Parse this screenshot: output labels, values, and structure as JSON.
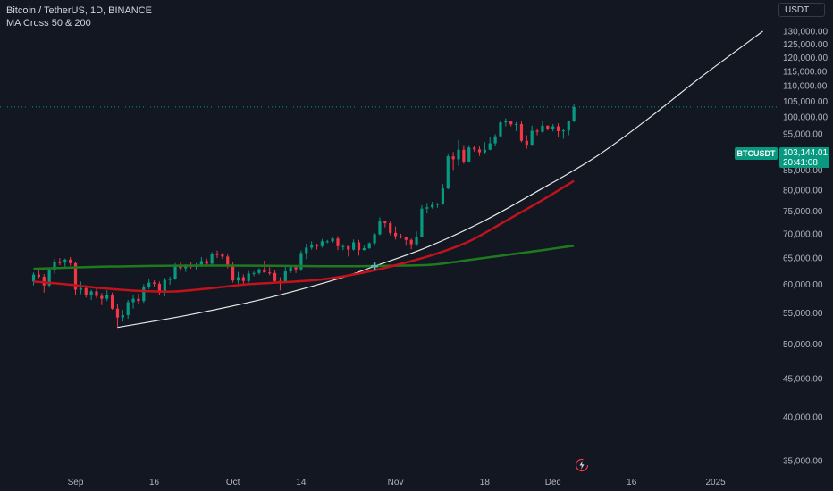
{
  "header": {
    "symbol_line": "Bitcoin / TetherUS, 1D, BINANCE",
    "indicator_line": "MA Cross 50 & 200",
    "currency_button": "USDT"
  },
  "price_tag": {
    "symbol": "BTCUSDT",
    "price": "103,144.01",
    "countdown": "20:41:08"
  },
  "colors": {
    "background": "#131722",
    "up_candle": "#089981",
    "down_candle": "#f23645",
    "ma_fast": "#c2121b",
    "ma_slow": "#1f7a1f",
    "curve": "#e8e8e8",
    "cross_marker": "#5fb8b0"
  },
  "icons": {
    "replay": "lightning-clock-icon"
  },
  "chart_data": {
    "type": "candlestick",
    "y_axis_labels": [
      "130,000.00",
      "125,000.00",
      "120,000.00",
      "115,000.00",
      "110,000.00",
      "105,000.00",
      "100,000.00",
      "95,000.00",
      "90,000.00",
      "85,000.00",
      "80,000.00",
      "75,000.00",
      "70,000.00",
      "65,000.00",
      "60,000.00",
      "55,000.00",
      "50,000.00",
      "45,000.00",
      "40,000.00",
      "35,000.00"
    ],
    "y_axis_values": [
      130000,
      125000,
      120000,
      115000,
      110000,
      105000,
      100000,
      95000,
      90000,
      85000,
      80000,
      75000,
      70000,
      65000,
      60000,
      55000,
      50000,
      45000,
      40000,
      35000
    ],
    "y_scale": "log",
    "x_axis_labels": [
      "Sep",
      "16",
      "Oct",
      "14",
      "Nov",
      "18",
      "Dec",
      "16",
      "2025"
    ],
    "x_axis_dates": [
      "2024-09-01",
      "2024-09-16",
      "2024-10-01",
      "2024-10-14",
      "2024-11-01",
      "2024-11-18",
      "2024-12-01",
      "2024-12-16",
      "2025-01-01"
    ],
    "last_price": 103144.01,
    "candles": [
      {
        "date": "2024-08-24",
        "open": 60500,
        "high": 62200,
        "low": 59800,
        "close": 61800
      },
      {
        "date": "2024-08-25",
        "open": 61800,
        "high": 62600,
        "low": 61100,
        "close": 61400
      },
      {
        "date": "2024-08-26",
        "open": 61400,
        "high": 61900,
        "low": 58500,
        "close": 59800
      },
      {
        "date": "2024-08-27",
        "open": 59800,
        "high": 63000,
        "low": 59400,
        "close": 62600
      },
      {
        "date": "2024-08-28",
        "open": 62600,
        "high": 64800,
        "low": 62000,
        "close": 64200
      },
      {
        "date": "2024-08-29",
        "open": 64200,
        "high": 65000,
        "low": 63600,
        "close": 64100
      },
      {
        "date": "2024-08-30",
        "open": 64100,
        "high": 64900,
        "low": 63200,
        "close": 64700
      },
      {
        "date": "2024-08-31",
        "open": 64700,
        "high": 65200,
        "low": 63500,
        "close": 64000
      },
      {
        "date": "2024-09-01",
        "open": 64000,
        "high": 64200,
        "low": 58000,
        "close": 59000
      },
      {
        "date": "2024-09-02",
        "open": 59000,
        "high": 60500,
        "low": 58200,
        "close": 59300
      },
      {
        "date": "2024-09-03",
        "open": 59300,
        "high": 59800,
        "low": 57600,
        "close": 58100
      },
      {
        "date": "2024-09-04",
        "open": 58100,
        "high": 59000,
        "low": 57200,
        "close": 58700
      },
      {
        "date": "2024-09-05",
        "open": 58700,
        "high": 59400,
        "low": 57500,
        "close": 57900
      },
      {
        "date": "2024-09-06",
        "open": 57900,
        "high": 58400,
        "low": 56300,
        "close": 57400
      },
      {
        "date": "2024-09-07",
        "open": 57400,
        "high": 58900,
        "low": 57000,
        "close": 58100
      },
      {
        "date": "2024-09-08",
        "open": 58100,
        "high": 58500,
        "low": 55500,
        "close": 55700
      },
      {
        "date": "2024-09-09",
        "open": 55700,
        "high": 56500,
        "low": 52600,
        "close": 54200
      },
      {
        "date": "2024-09-10",
        "open": 54200,
        "high": 55500,
        "low": 53500,
        "close": 54600
      },
      {
        "date": "2024-09-11",
        "open": 54600,
        "high": 57200,
        "low": 54000,
        "close": 56800
      },
      {
        "date": "2024-09-12",
        "open": 56800,
        "high": 58000,
        "low": 55700,
        "close": 57400
      },
      {
        "date": "2024-09-13",
        "open": 57400,
        "high": 58300,
        "low": 56500,
        "close": 57000
      },
      {
        "date": "2024-09-14",
        "open": 57000,
        "high": 60000,
        "low": 56700,
        "close": 59500
      },
      {
        "date": "2024-09-15",
        "open": 59500,
        "high": 60900,
        "low": 59100,
        "close": 60300
      },
      {
        "date": "2024-09-16",
        "open": 60300,
        "high": 60700,
        "low": 59600,
        "close": 60100
      },
      {
        "date": "2024-09-17",
        "open": 60100,
        "high": 60500,
        "low": 58000,
        "close": 58600
      },
      {
        "date": "2024-09-18",
        "open": 58600,
        "high": 61200,
        "low": 57800,
        "close": 60800
      },
      {
        "date": "2024-09-19",
        "open": 60800,
        "high": 61400,
        "low": 59900,
        "close": 61000
      },
      {
        "date": "2024-09-20",
        "open": 61000,
        "high": 64000,
        "low": 60800,
        "close": 63500
      },
      {
        "date": "2024-09-21",
        "open": 63500,
        "high": 64100,
        "low": 62500,
        "close": 63000
      },
      {
        "date": "2024-09-22",
        "open": 63000,
        "high": 63800,
        "low": 62300,
        "close": 63600
      },
      {
        "date": "2024-09-23",
        "open": 63600,
        "high": 64200,
        "low": 62900,
        "close": 63300
      },
      {
        "date": "2024-09-24",
        "open": 63300,
        "high": 64000,
        "low": 62800,
        "close": 63700
      },
      {
        "date": "2024-09-25",
        "open": 63700,
        "high": 65200,
        "low": 63300,
        "close": 64400
      },
      {
        "date": "2024-09-26",
        "open": 64400,
        "high": 64900,
        "low": 63500,
        "close": 63900
      },
      {
        "date": "2024-09-27",
        "open": 63900,
        "high": 66200,
        "low": 63600,
        "close": 65800
      },
      {
        "date": "2024-09-28",
        "open": 65800,
        "high": 66500,
        "low": 65000,
        "close": 65700
      },
      {
        "date": "2024-09-29",
        "open": 65700,
        "high": 66000,
        "low": 64800,
        "close": 65300
      },
      {
        "date": "2024-09-30",
        "open": 65300,
        "high": 65700,
        "low": 63000,
        "close": 63500
      },
      {
        "date": "2024-10-01",
        "open": 63500,
        "high": 64200,
        "low": 60300,
        "close": 60700
      },
      {
        "date": "2024-10-02",
        "open": 60700,
        "high": 62300,
        "low": 60100,
        "close": 61300
      },
      {
        "date": "2024-10-03",
        "open": 61300,
        "high": 61800,
        "low": 59800,
        "close": 60600
      },
      {
        "date": "2024-10-04",
        "open": 60600,
        "high": 62500,
        "low": 60300,
        "close": 62000
      },
      {
        "date": "2024-10-05",
        "open": 62000,
        "high": 62400,
        "low": 61500,
        "close": 62100
      },
      {
        "date": "2024-10-06",
        "open": 62100,
        "high": 63000,
        "low": 61800,
        "close": 62800
      },
      {
        "date": "2024-10-07",
        "open": 62800,
        "high": 64500,
        "low": 62200,
        "close": 62200
      },
      {
        "date": "2024-10-08",
        "open": 62200,
        "high": 63200,
        "low": 61700,
        "close": 62100
      },
      {
        "date": "2024-10-09",
        "open": 62100,
        "high": 62600,
        "low": 60200,
        "close": 60600
      },
      {
        "date": "2024-10-10",
        "open": 60600,
        "high": 61300,
        "low": 58900,
        "close": 60300
      },
      {
        "date": "2024-10-11",
        "open": 60300,
        "high": 63400,
        "low": 60200,
        "close": 62400
      },
      {
        "date": "2024-10-12",
        "open": 62400,
        "high": 63400,
        "low": 62100,
        "close": 63200
      },
      {
        "date": "2024-10-13",
        "open": 63200,
        "high": 63300,
        "low": 62100,
        "close": 62800
      },
      {
        "date": "2024-10-14",
        "open": 62800,
        "high": 66500,
        "low": 62500,
        "close": 66000
      },
      {
        "date": "2024-10-15",
        "open": 66000,
        "high": 67900,
        "low": 64800,
        "close": 67100
      },
      {
        "date": "2024-10-16",
        "open": 67100,
        "high": 68400,
        "low": 66700,
        "close": 67600
      },
      {
        "date": "2024-10-17",
        "open": 67600,
        "high": 67900,
        "low": 66700,
        "close": 67400
      },
      {
        "date": "2024-10-18",
        "open": 67400,
        "high": 68900,
        "low": 67100,
        "close": 68400
      },
      {
        "date": "2024-10-19",
        "open": 68400,
        "high": 68700,
        "low": 68000,
        "close": 68400
      },
      {
        "date": "2024-10-20",
        "open": 68400,
        "high": 69400,
        "low": 68100,
        "close": 69000
      },
      {
        "date": "2024-10-21",
        "open": 69000,
        "high": 69500,
        "low": 66600,
        "close": 67400
      },
      {
        "date": "2024-10-22",
        "open": 67400,
        "high": 67800,
        "low": 66600,
        "close": 67400
      },
      {
        "date": "2024-10-23",
        "open": 67400,
        "high": 67500,
        "low": 65300,
        "close": 66700
      },
      {
        "date": "2024-10-24",
        "open": 66700,
        "high": 68800,
        "low": 66500,
        "close": 68200
      },
      {
        "date": "2024-10-25",
        "open": 68200,
        "high": 68700,
        "low": 65500,
        "close": 66600
      },
      {
        "date": "2024-10-26",
        "open": 66600,
        "high": 67500,
        "low": 66500,
        "close": 67000
      },
      {
        "date": "2024-10-27",
        "open": 67000,
        "high": 68200,
        "low": 66800,
        "close": 68000
      },
      {
        "date": "2024-10-28",
        "open": 68000,
        "high": 70200,
        "low": 67500,
        "close": 69900
      },
      {
        "date": "2024-10-29",
        "open": 69900,
        "high": 73600,
        "low": 69700,
        "close": 72700
      },
      {
        "date": "2024-10-30",
        "open": 72700,
        "high": 72900,
        "low": 71400,
        "close": 72300
      },
      {
        "date": "2024-10-31",
        "open": 72300,
        "high": 72700,
        "low": 69700,
        "close": 70200
      },
      {
        "date": "2024-11-01",
        "open": 70200,
        "high": 71600,
        "low": 68800,
        "close": 69500
      },
      {
        "date": "2024-11-02",
        "open": 69500,
        "high": 70000,
        "low": 69000,
        "close": 69300
      },
      {
        "date": "2024-11-03",
        "open": 69300,
        "high": 69400,
        "low": 67500,
        "close": 68700
      },
      {
        "date": "2024-11-04",
        "open": 68700,
        "high": 69000,
        "low": 66800,
        "close": 67800
      },
      {
        "date": "2024-11-05",
        "open": 67800,
        "high": 70500,
        "low": 67400,
        "close": 69400
      },
      {
        "date": "2024-11-06",
        "open": 69400,
        "high": 76400,
        "low": 69300,
        "close": 75600
      },
      {
        "date": "2024-11-07",
        "open": 75600,
        "high": 76900,
        "low": 74500,
        "close": 75900
      },
      {
        "date": "2024-11-08",
        "open": 75900,
        "high": 77200,
        "low": 75600,
        "close": 76500
      },
      {
        "date": "2024-11-09",
        "open": 76500,
        "high": 76900,
        "low": 75800,
        "close": 76700
      },
      {
        "date": "2024-11-10",
        "open": 76700,
        "high": 81500,
        "low": 76500,
        "close": 80400
      },
      {
        "date": "2024-11-11",
        "open": 80400,
        "high": 89500,
        "low": 80200,
        "close": 88700
      },
      {
        "date": "2024-11-12",
        "open": 88700,
        "high": 89900,
        "low": 85100,
        "close": 87900
      },
      {
        "date": "2024-11-13",
        "open": 87900,
        "high": 93300,
        "low": 86200,
        "close": 90500
      },
      {
        "date": "2024-11-14",
        "open": 90500,
        "high": 91800,
        "low": 86700,
        "close": 87300
      },
      {
        "date": "2024-11-15",
        "open": 87300,
        "high": 91800,
        "low": 87100,
        "close": 91100
      },
      {
        "date": "2024-11-16",
        "open": 91100,
        "high": 91700,
        "low": 90000,
        "close": 90600
      },
      {
        "date": "2024-11-17",
        "open": 90600,
        "high": 91400,
        "low": 88800,
        "close": 89800
      },
      {
        "date": "2024-11-18",
        "open": 89800,
        "high": 92600,
        "low": 89400,
        "close": 90500
      },
      {
        "date": "2024-11-19",
        "open": 90500,
        "high": 94000,
        "low": 90400,
        "close": 92300
      },
      {
        "date": "2024-11-20",
        "open": 92300,
        "high": 94900,
        "low": 91500,
        "close": 94300
      },
      {
        "date": "2024-11-21",
        "open": 94300,
        "high": 99000,
        "low": 94100,
        "close": 98400
      },
      {
        "date": "2024-11-22",
        "open": 98400,
        "high": 99600,
        "low": 97200,
        "close": 98900
      },
      {
        "date": "2024-11-23",
        "open": 98900,
        "high": 98900,
        "low": 97200,
        "close": 97800
      },
      {
        "date": "2024-11-24",
        "open": 97800,
        "high": 98500,
        "low": 95800,
        "close": 97900
      },
      {
        "date": "2024-11-25",
        "open": 97900,
        "high": 98800,
        "low": 92600,
        "close": 93000
      },
      {
        "date": "2024-11-26",
        "open": 93000,
        "high": 94600,
        "low": 90800,
        "close": 91900
      },
      {
        "date": "2024-11-27",
        "open": 91900,
        "high": 97400,
        "low": 91800,
        "close": 95900
      },
      {
        "date": "2024-11-28",
        "open": 95900,
        "high": 96600,
        "low": 94600,
        "close": 95600
      },
      {
        "date": "2024-11-29",
        "open": 95600,
        "high": 98700,
        "low": 95300,
        "close": 97400
      },
      {
        "date": "2024-11-30",
        "open": 97400,
        "high": 97500,
        "low": 96000,
        "close": 96400
      },
      {
        "date": "2024-12-01",
        "open": 96400,
        "high": 97900,
        "low": 95700,
        "close": 97200
      },
      {
        "date": "2024-12-02",
        "open": 97200,
        "high": 98100,
        "low": 94200,
        "close": 95800
      },
      {
        "date": "2024-12-03",
        "open": 95800,
        "high": 96300,
        "low": 93600,
        "close": 96000
      },
      {
        "date": "2024-12-04",
        "open": 96000,
        "high": 99000,
        "low": 94600,
        "close": 98700
      },
      {
        "date": "2024-12-05",
        "open": 98700,
        "high": 104000,
        "low": 98500,
        "close": 103144
      }
    ],
    "ma_fast": {
      "length": 50,
      "points": [
        {
          "date": "2024-08-24",
          "value": 60500
        },
        {
          "date": "2024-08-30",
          "value": 60000
        },
        {
          "date": "2024-09-06",
          "value": 59300
        },
        {
          "date": "2024-09-13",
          "value": 58800
        },
        {
          "date": "2024-09-20",
          "value": 58700
        },
        {
          "date": "2024-09-27",
          "value": 59300
        },
        {
          "date": "2024-10-04",
          "value": 60000
        },
        {
          "date": "2024-10-11",
          "value": 60400
        },
        {
          "date": "2024-10-18",
          "value": 60900
        },
        {
          "date": "2024-10-25",
          "value": 62000
        },
        {
          "date": "2024-11-01",
          "value": 63600
        },
        {
          "date": "2024-11-08",
          "value": 65600
        },
        {
          "date": "2024-11-15",
          "value": 68400
        },
        {
          "date": "2024-11-22",
          "value": 72800
        },
        {
          "date": "2024-11-29",
          "value": 77600
        },
        {
          "date": "2024-12-05",
          "value": 82300
        }
      ]
    },
    "ma_slow": {
      "length": 200,
      "points": [
        {
          "date": "2024-08-24",
          "value": 62900
        },
        {
          "date": "2024-09-06",
          "value": 63300
        },
        {
          "date": "2024-09-20",
          "value": 63500
        },
        {
          "date": "2024-10-04",
          "value": 63500
        },
        {
          "date": "2024-10-18",
          "value": 63400
        },
        {
          "date": "2024-10-25",
          "value": 63400
        },
        {
          "date": "2024-11-01",
          "value": 63500
        },
        {
          "date": "2024-11-08",
          "value": 63700
        },
        {
          "date": "2024-11-15",
          "value": 64600
        },
        {
          "date": "2024-11-22",
          "value": 65600
        },
        {
          "date": "2024-11-29",
          "value": 66600
        },
        {
          "date": "2024-12-05",
          "value": 67500
        }
      ]
    },
    "curve": {
      "points": [
        {
          "date": "2024-09-09",
          "value": 52600
        },
        {
          "date": "2024-09-23",
          "value": 54700
        },
        {
          "date": "2024-10-07",
          "value": 57400
        },
        {
          "date": "2024-10-21",
          "value": 61000
        },
        {
          "date": "2024-10-28",
          "value": 63400
        },
        {
          "date": "2024-11-07",
          "value": 67200
        },
        {
          "date": "2024-11-18",
          "value": 72900
        },
        {
          "date": "2024-11-28",
          "value": 79700
        },
        {
          "date": "2024-12-09",
          "value": 88400
        },
        {
          "date": "2024-12-19",
          "value": 99300
        },
        {
          "date": "2024-12-29",
          "value": 112700
        },
        {
          "date": "2025-01-10",
          "value": 130000
        }
      ]
    },
    "cross_marker": {
      "date": "2024-10-28",
      "value": 63400
    }
  }
}
